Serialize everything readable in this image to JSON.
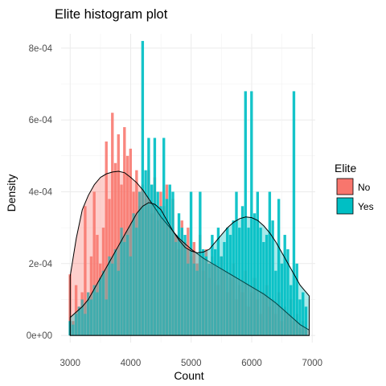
{
  "chart_data": {
    "type": "histogram",
    "title": "Elite histogram plot",
    "xlabel": "Count",
    "ylabel": "Density",
    "xlim": [
      2850,
      7050
    ],
    "ylim": [
      -2e-05,
      0.00084
    ],
    "x_ticks": [
      3000,
      4000,
      5000,
      6000,
      7000
    ],
    "x_tick_labels": [
      "3000",
      "4000",
      "5000",
      "6000",
      "7000"
    ],
    "y_ticks": [
      0,
      0.0002,
      0.0004,
      0.0006,
      0.0008
    ],
    "y_tick_labels": [
      "0e+00",
      "2e-04",
      "4e-04",
      "6e-04",
      "8e-04"
    ],
    "grid": true,
    "bin_width": 50,
    "legend": {
      "title": "Elite",
      "position": "right",
      "entries": [
        {
          "label": "No",
          "color": "#F8766D"
        },
        {
          "label": "Yes",
          "color": "#00BFC4"
        }
      ]
    },
    "series": [
      {
        "name": "No",
        "color": "#F8766D",
        "histogram": {
          "x": [
            3000,
            3050,
            3100,
            3150,
            3200,
            3250,
            3300,
            3350,
            3400,
            3450,
            3500,
            3550,
            3600,
            3650,
            3700,
            3750,
            3800,
            3850,
            3900,
            3950,
            4000,
            4050,
            4100,
            4150,
            4200,
            4250,
            4300,
            4350,
            4400,
            4450,
            4500,
            4550,
            4600,
            4650,
            4700,
            4750,
            4800,
            4850,
            4900,
            4950,
            5000,
            5050,
            5100,
            5150,
            5200,
            5250,
            5300,
            5350,
            5400,
            5450,
            5500,
            5550,
            5600,
            5650,
            5700,
            5750,
            5800,
            5850,
            5900,
            5950,
            6000,
            6050,
            6100,
            6150,
            6200,
            6250,
            6300,
            6350,
            6400,
            6450,
            6500,
            6550,
            6600,
            6650,
            6700,
            6750,
            6800,
            6850,
            6900
          ],
          "density": [
            0.00017,
            4e-05,
            0.00014,
            8e-05,
            0.00012,
            0.00036,
            0.0001,
            0.00022,
            0.0004,
            0.00028,
            0.0002,
            0.0003,
            0.00054,
            0.00038,
            0.00062,
            0.00048,
            0.00056,
            0.00042,
            0.00058,
            0.0005,
            0.00052,
            0.0004,
            0.00046,
            0.00036,
            0.00042,
            0.00038,
            0.00046,
            0.00034,
            0.00044,
            0.00032,
            0.0004,
            0.00036,
            0.00042,
            0.0003,
            0.00038,
            0.00028,
            0.00024,
            0.00032,
            0.00026,
            0.0003,
            0.00022,
            0.00026,
            0.0002,
            0.00028,
            0.00018,
            0.00024,
            0.00016,
            0.00022,
            0.0002,
            0.00014,
            0.00022,
            0.00018,
            0.00012,
            0.00016,
            0.0002,
            0.0001,
            0.00014,
            0.00012,
            0.00018,
            8e-05,
            0.00012,
            0.00016,
            0.0001,
            6e-05,
            0.00012,
            0.00014,
            8e-05,
            0.0001,
            6e-05,
            0.00012,
            4e-05,
            8e-05,
            6e-05,
            0.0001,
            4e-05,
            6e-05,
            2e-05,
            4e-05,
            2e-05
          ]
        },
        "density_curve": {
          "x": [
            3000,
            3100,
            3200,
            3300,
            3400,
            3500,
            3600,
            3700,
            3800,
            3900,
            4000,
            4100,
            4200,
            4300,
            4400,
            4500,
            4600,
            4700,
            4800,
            4900,
            5000,
            5200,
            5400,
            5600,
            5800,
            6000,
            6200,
            6400,
            6600,
            6800,
            6950
          ],
          "y": [
            0.000165,
            0.00027,
            0.00035,
            0.00039,
            0.00042,
            0.00044,
            0.00045,
            0.000455,
            0.000457,
            0.000453,
            0.00044,
            0.000425,
            0.000405,
            0.00038,
            0.000355,
            0.00033,
            0.00031,
            0.00029,
            0.00027,
            0.000255,
            0.00024,
            0.000215,
            0.000195,
            0.000175,
            0.000155,
            0.000135,
            0.000115,
            9e-05,
            6e-05,
            3e-05,
            1.5e-05
          ]
        }
      },
      {
        "name": "Yes",
        "color": "#00BFC4",
        "histogram": {
          "x": [
            3000,
            3050,
            3100,
            3150,
            3200,
            3250,
            3300,
            3350,
            3400,
            3450,
            3500,
            3550,
            3600,
            3650,
            3700,
            3750,
            3800,
            3850,
            3900,
            3950,
            4000,
            4050,
            4100,
            4150,
            4200,
            4250,
            4300,
            4350,
            4400,
            4450,
            4500,
            4550,
            4600,
            4650,
            4700,
            4750,
            4800,
            4850,
            4900,
            4950,
            5000,
            5050,
            5100,
            5150,
            5200,
            5250,
            5300,
            5350,
            5400,
            5450,
            5500,
            5550,
            5600,
            5650,
            5700,
            5750,
            5800,
            5850,
            5900,
            5950,
            6000,
            6050,
            6100,
            6150,
            6200,
            6250,
            6300,
            6350,
            6400,
            6450,
            6500,
            6550,
            6600,
            6650,
            6700,
            6750,
            6800,
            6850,
            6900
          ],
          "density": [
            4e-05,
            3e-05,
            6e-05,
            8e-05,
            0.0001,
            6e-05,
            0.00012,
            0.0001,
            0.00014,
            0.00012,
            0.00016,
            0.00018,
            0.0001,
            0.00022,
            0.0002,
            0.00024,
            0.00018,
            0.0003,
            0.00026,
            0.00028,
            0.00022,
            0.00034,
            0.0003,
            0.0004,
            0.00082,
            0.00046,
            0.00055,
            0.00042,
            0.00055,
            0.0004,
            0.00036,
            0.00055,
            0.00038,
            0.00042,
            0.0004,
            0.00026,
            0.00034,
            0.0003,
            0.00028,
            0.0002,
            0.0004,
            0.0002,
            0.00018,
            0.0004,
            0.00024,
            0.00022,
            0.0002,
            0.00028,
            0.00024,
            0.0003,
            0.00022,
            0.00026,
            0.0003,
            0.00028,
            0.00032,
            0.0004,
            0.0003,
            0.00036,
            0.00068,
            0.0003,
            0.00068,
            0.00034,
            0.0004,
            0.0003,
            0.00026,
            0.00028,
            0.0004,
            0.00032,
            0.00018,
            0.00038,
            0.0002,
            0.00028,
            0.00024,
            0.00014,
            0.00068,
            0.0002,
            0.0001,
            0.00012,
            8e-05
          ]
        },
        "density_curve": {
          "x": [
            3000,
            3100,
            3200,
            3300,
            3400,
            3500,
            3600,
            3700,
            3800,
            3900,
            4000,
            4100,
            4200,
            4300,
            4400,
            4500,
            4600,
            4700,
            4800,
            4900,
            5000,
            5100,
            5200,
            5300,
            5400,
            5500,
            5600,
            5700,
            5800,
            5900,
            6000,
            6100,
            6200,
            6300,
            6400,
            6500,
            6600,
            6700,
            6800,
            6950
          ],
          "y": [
            5e-05,
            6.5e-05,
            8e-05,
            0.0001,
            0.00013,
            0.00016,
            0.00019,
            0.00022,
            0.00025,
            0.00028,
            0.00031,
            0.00034,
            0.00036,
            0.00037,
            0.000365,
            0.00035,
            0.00032,
            0.00029,
            0.000265,
            0.000245,
            0.000235,
            0.00023,
            0.000232,
            0.00024,
            0.00026,
            0.00028,
            0.0003,
            0.000315,
            0.000325,
            0.00033,
            0.000328,
            0.00032,
            0.000305,
            0.000285,
            0.00026,
            0.00023,
            0.0002,
            0.00017,
            0.00014,
            0.00011
          ]
        }
      }
    ]
  }
}
